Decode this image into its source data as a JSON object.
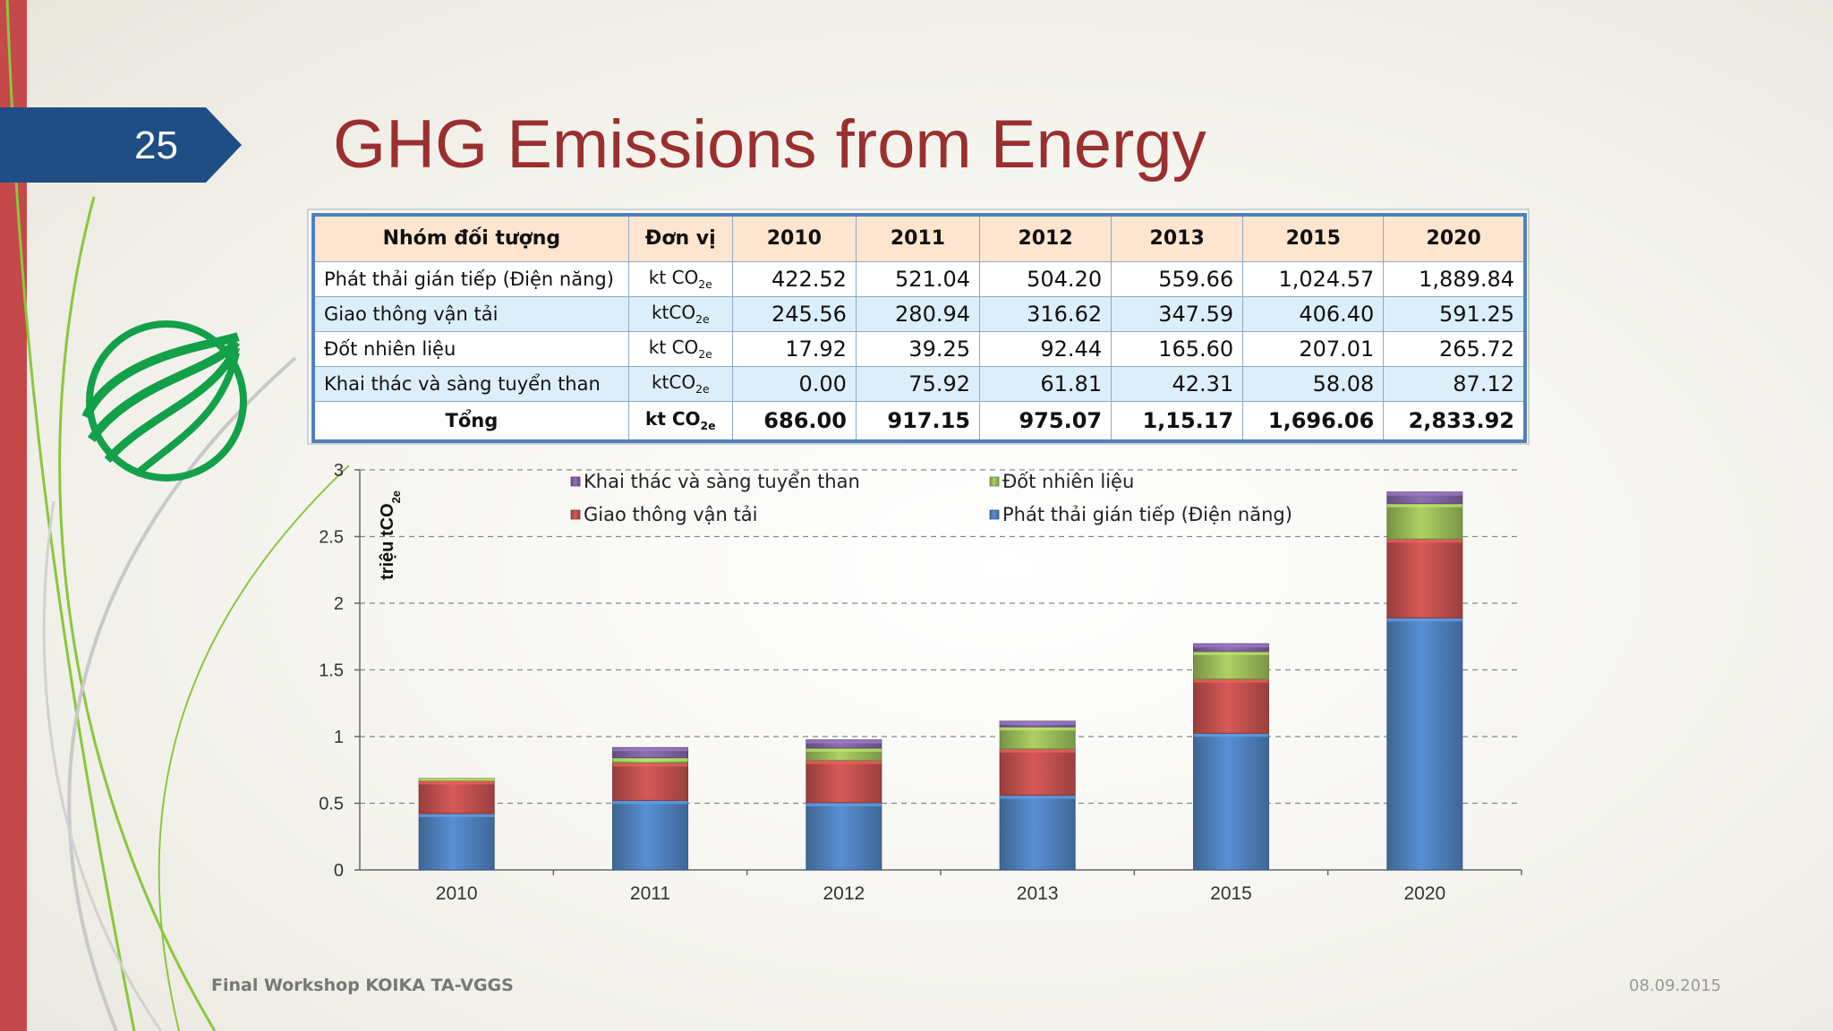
{
  "slide": {
    "number": "25",
    "title": "GHG Emissions from Energy",
    "footer_left": "Final Workshop KOIKA TA-VGGS",
    "footer_right": "08.09.2015"
  },
  "table": {
    "headers": [
      "Nhóm đối tượng",
      "Đơn vị",
      "2010",
      "2011",
      "2012",
      "2013",
      "2015",
      "2020"
    ],
    "rows": [
      {
        "group": "Phát thải gián tiếp (Điện năng)",
        "unit_base": "kt CO",
        "unit_sub": "2e",
        "values": [
          "422.52",
          "521.04",
          "504.20",
          "559.66",
          "1,024.57",
          "1,889.84"
        ]
      },
      {
        "group": "Giao thông vận tải",
        "unit_base": "ktCO",
        "unit_sub": "2e",
        "values": [
          "245.56",
          "280.94",
          "316.62",
          "347.59",
          "406.40",
          "591.25"
        ]
      },
      {
        "group": "Đốt nhiên liệu",
        "unit_base": "kt CO",
        "unit_sub": "2e",
        "values": [
          "17.92",
          "39.25",
          "92.44",
          "165.60",
          "207.01",
          "265.72"
        ]
      },
      {
        "group": "Khai thác và sàng tuyển than",
        "unit_base": "ktCO",
        "unit_sub": "2e",
        "values": [
          "0.00",
          "75.92",
          "61.81",
          "42.31",
          "58.08",
          "87.12"
        ]
      }
    ],
    "total": {
      "group": "Tổng",
      "unit_base": "kt CO",
      "unit_sub": "2e",
      "values": [
        "686.00",
        "917.15",
        "975.07",
        "1,15.17",
        "1,696.06",
        "2,833.92"
      ]
    }
  },
  "chart_data": {
    "type": "bar",
    "stacked": true,
    "categories": [
      "2010",
      "2011",
      "2012",
      "2013",
      "2015",
      "2020"
    ],
    "series": [
      {
        "name": "Phát thải gián tiếp (Điện năng)",
        "color": "#4f81bd",
        "values": [
          0.42252,
          0.52104,
          0.5042,
          0.55966,
          1.02457,
          1.88984
        ]
      },
      {
        "name": "Giao thông vận tải",
        "color": "#c0504d",
        "values": [
          0.24556,
          0.28094,
          0.31662,
          0.34759,
          0.4064,
          0.59125
        ]
      },
      {
        "name": "Đốt nhiên liệu",
        "color": "#9bbb59",
        "values": [
          0.01792,
          0.03925,
          0.09244,
          0.1656,
          0.20701,
          0.26572
        ]
      },
      {
        "name": "Khai thác và sàng tuyển than",
        "color": "#8064a2",
        "values": [
          0.0,
          0.07592,
          0.06181,
          0.04231,
          0.05808,
          0.08712
        ]
      }
    ],
    "ylabel_base": "triệu tCO",
    "ylabel_sub": "2e",
    "ylim": [
      0,
      3
    ],
    "yticks": [
      "0",
      "0.5",
      "1",
      "1.5",
      "2",
      "2.5",
      "3"
    ],
    "grid": true,
    "legend_position": "top",
    "legend_order": [
      "Khai thác và sàng tuyển than",
      "Đốt nhiên liệu",
      "Giao thông vận tải",
      "Phát thải gián tiếp (Điện năng)"
    ]
  }
}
